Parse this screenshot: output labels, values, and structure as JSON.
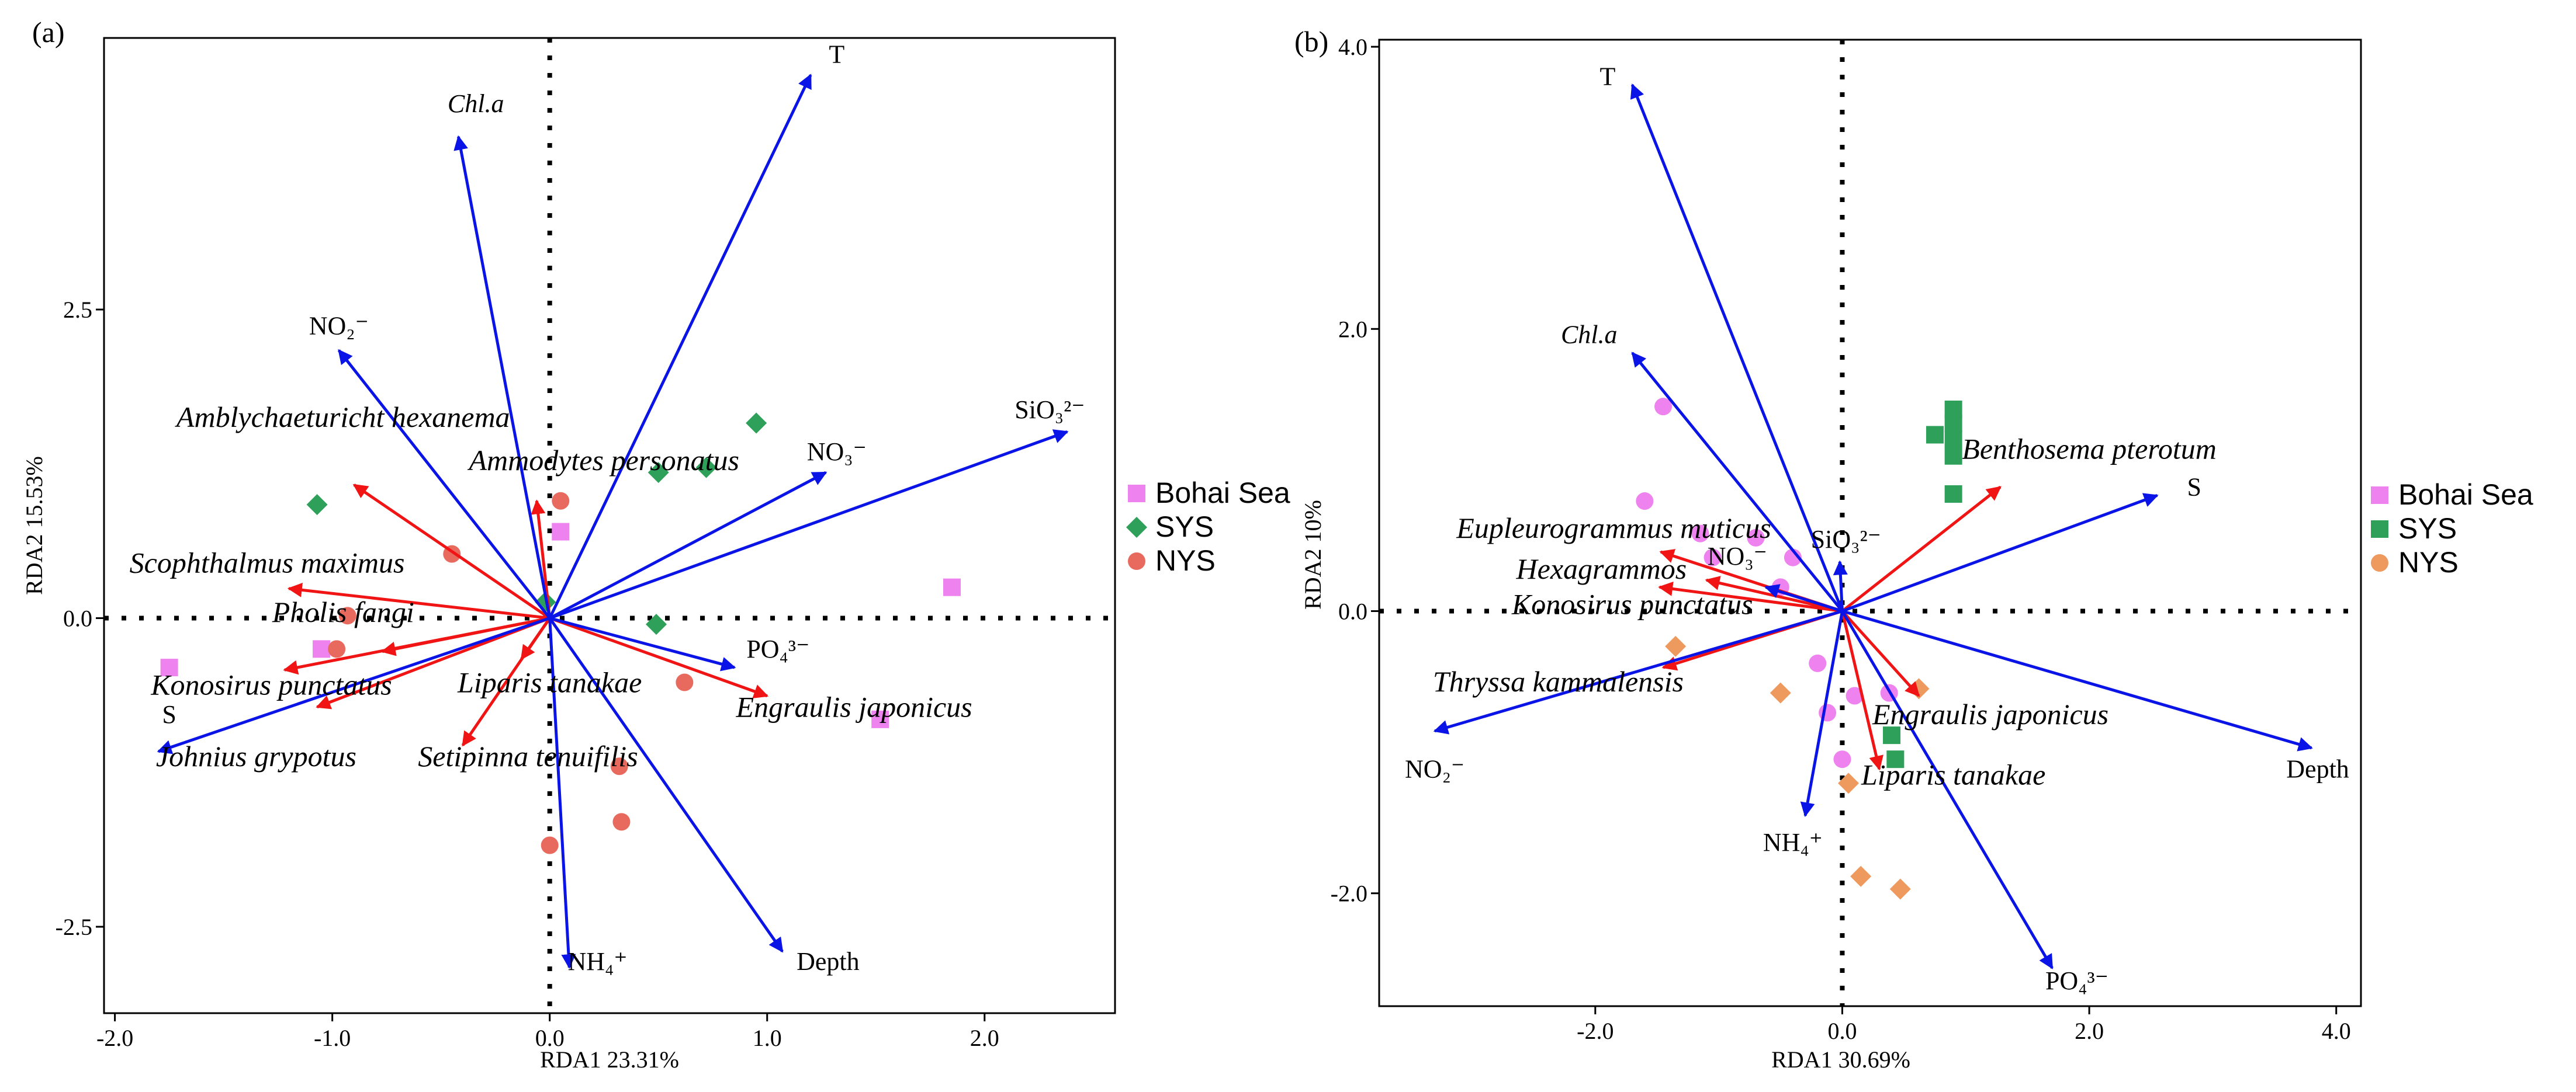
{
  "chart_data": [
    {
      "panel": "(a)",
      "type": "scatter",
      "xlabel": "RDA1 23.31%",
      "ylabel": "RDA2 15.53%",
      "xlim": [
        -2.05,
        2.6
      ],
      "ylim": [
        -3.2,
        4.7
      ],
      "xticks": [
        -2.0,
        -1.0,
        0.0,
        1.0,
        2.0
      ],
      "xtick_labels": [
        "-2.0",
        "-1.0",
        "0.0",
        "1.0",
        "2.0"
      ],
      "yticks": [
        -2.5,
        0.0,
        2.5
      ],
      "ytick_labels": [
        "-2.5",
        "0.0",
        "2.5"
      ],
      "env_vectors": [
        {
          "name": "T",
          "label": "T",
          "x": 1.2,
          "y": 4.4,
          "lx": 1.32,
          "ly": 4.5
        },
        {
          "name": "Chl.a",
          "label": "Chl.a",
          "x": -0.42,
          "y": 3.9,
          "lx": -0.34,
          "ly": 4.1,
          "italic": true
        },
        {
          "name": "NO2",
          "label": "NO₂⁻",
          "x": -0.97,
          "y": 2.17,
          "lx": -0.97,
          "ly": 2.3
        },
        {
          "name": "SiO3",
          "label": "SiO₃²⁻",
          "x": 2.38,
          "y": 1.51,
          "lx": 2.3,
          "ly": 1.62
        },
        {
          "name": "NO3",
          "label": "NO₃⁻",
          "x": 1.27,
          "y": 1.18,
          "lx": 1.32,
          "ly": 1.28
        },
        {
          "name": "PO4",
          "label": "PO₄³⁻",
          "x": 0.85,
          "y": -0.4,
          "lx": 1.05,
          "ly": -0.32
        },
        {
          "name": "S",
          "label": "S",
          "x": -1.8,
          "y": -1.08,
          "lx": -1.75,
          "ly": -0.85
        },
        {
          "name": "NH4",
          "label": "NH₄⁺",
          "x": 0.09,
          "y": -2.83,
          "lx": 0.22,
          "ly": -2.85
        },
        {
          "name": "Depth",
          "label": "Depth",
          "x": 1.07,
          "y": -2.7,
          "lx": 1.28,
          "ly": -2.85
        }
      ],
      "species_vectors": [
        {
          "name": "Amblychaeturicht hexanema",
          "x": -0.9,
          "y": 1.08,
          "lx": -0.95,
          "ly": 1.55
        },
        {
          "name": "Ammodytes personatus",
          "x": -0.06,
          "y": 0.95,
          "lx": 0.25,
          "ly": 1.2
        },
        {
          "name": "Scophthalmus maximus",
          "x": -1.2,
          "y": 0.24,
          "lx": -1.3,
          "ly": 0.37
        },
        {
          "name": "Pholis fangi",
          "x": -0.77,
          "y": -0.27,
          "lx": -0.95,
          "ly": -0.03
        },
        {
          "name": "Konosirus punctatus",
          "x": -1.22,
          "y": -0.42,
          "lx": -1.28,
          "ly": -0.62
        },
        {
          "name": "Johnius grypotus",
          "x": -1.07,
          "y": -0.72,
          "lx": -1.35,
          "ly": -1.2
        },
        {
          "name": "Liparis tanakae",
          "x": -0.13,
          "y": -0.33,
          "lx": 0.0,
          "ly": -0.6
        },
        {
          "name": "Setipinna tenuifilis",
          "x": -0.4,
          "y": -1.03,
          "lx": -0.1,
          "ly": -1.2
        },
        {
          "name": "Engraulis japonicus",
          "x": 1.0,
          "y": -0.63,
          "lx": 1.4,
          "ly": -0.8
        }
      ],
      "sites": [
        {
          "group": "Bohai Sea",
          "x": 0.05,
          "y": 0.7
        },
        {
          "group": "Bohai Sea",
          "x": 1.85,
          "y": 0.25
        },
        {
          "group": "Bohai Sea",
          "x": -1.75,
          "y": -0.4
        },
        {
          "group": "Bohai Sea",
          "x": -1.05,
          "y": -0.25
        },
        {
          "group": "Bohai Sea",
          "x": 1.52,
          "y": -0.82
        },
        {
          "group": "SYS",
          "x": 0.95,
          "y": 1.58
        },
        {
          "group": "SYS",
          "x": 0.72,
          "y": 1.22
        },
        {
          "group": "SYS",
          "x": 0.5,
          "y": 1.18
        },
        {
          "group": "SYS",
          "x": -1.07,
          "y": 0.92
        },
        {
          "group": "SYS",
          "x": -0.02,
          "y": 0.13
        },
        {
          "group": "SYS",
          "x": 0.49,
          "y": -0.05
        },
        {
          "group": "NYS",
          "x": 0.05,
          "y": 0.95
        },
        {
          "group": "NYS",
          "x": -0.45,
          "y": 0.52
        },
        {
          "group": "NYS",
          "x": -0.93,
          "y": 0.02
        },
        {
          "group": "NYS",
          "x": -0.98,
          "y": -0.25
        },
        {
          "group": "NYS",
          "x": 0.62,
          "y": -0.52
        },
        {
          "group": "NYS",
          "x": 0.32,
          "y": -1.2
        },
        {
          "group": "NYS",
          "x": 0.33,
          "y": -1.65
        },
        {
          "group": "NYS",
          "x": 0.0,
          "y": -1.84
        }
      ],
      "legend": [
        {
          "group": "Bohai Sea",
          "label": "Bohai Sea"
        },
        {
          "group": "SYS",
          "label": "SYS"
        },
        {
          "group": "NYS",
          "label": "NYS"
        }
      ]
    },
    {
      "panel": "(b)",
      "type": "scatter",
      "xlabel": "RDA1 30.69%",
      "ylabel": "RDA2 10%",
      "xlim": [
        -3.75,
        4.2
      ],
      "ylim": [
        -2.8,
        4.05
      ],
      "xticks": [
        -2.0,
        0.0,
        2.0,
        4.0
      ],
      "xtick_labels": [
        "-2.0",
        "0.0",
        "2.0",
        "4.0"
      ],
      "yticks": [
        -2.0,
        0.0,
        2.0,
        4.0
      ],
      "ytick_labels": [
        "-2.0",
        "0.0",
        "2.0",
        "4.0"
      ],
      "env_vectors": [
        {
          "name": "T",
          "label": "T",
          "x": -1.7,
          "y": 3.73,
          "lx": -1.9,
          "ly": 3.73
        },
        {
          "name": "Chl.a",
          "label": "Chl.a",
          "x": -1.7,
          "y": 1.83,
          "lx": -2.05,
          "ly": 1.9,
          "italic": true
        },
        {
          "name": "SiO3",
          "label": "SiO₃²⁻",
          "x": -0.02,
          "y": 0.35,
          "lx": 0.03,
          "ly": 0.45
        },
        {
          "name": "NO3",
          "label": "NO₃⁻",
          "x": -0.62,
          "y": 0.17,
          "lx": -0.85,
          "ly": 0.33
        },
        {
          "name": "S",
          "label": "S",
          "x": 2.55,
          "y": 0.82,
          "lx": 2.85,
          "ly": 0.82
        },
        {
          "name": "NO2",
          "label": "NO₂⁻",
          "x": -3.3,
          "y": -0.85,
          "lx": -3.3,
          "ly": -1.18
        },
        {
          "name": "NH4",
          "label": "NH₄⁺",
          "x": -0.3,
          "y": -1.45,
          "lx": -0.4,
          "ly": -1.7
        },
        {
          "name": "Depth",
          "label": "Depth",
          "x": 3.8,
          "y": -0.97,
          "lx": 3.85,
          "ly": -1.18
        },
        {
          "name": "PO4",
          "label": "PO₄³⁻",
          "x": 1.7,
          "y": -2.53,
          "lx": 1.9,
          "ly": -2.68
        }
      ],
      "species_vectors": [
        {
          "name": "Benthosema pterotum",
          "x": 1.28,
          "y": 0.88,
          "lx": 2.0,
          "ly": 1.08
        },
        {
          "name": "Eupleurogrammus muticus",
          "x": -1.47,
          "y": 0.42,
          "lx": -1.85,
          "ly": 0.52
        },
        {
          "name": "Hexagrammos",
          "x": -1.1,
          "y": 0.22,
          "lx": -1.95,
          "ly": 0.23
        },
        {
          "name": "Konosirus punctatus",
          "x": -1.48,
          "y": 0.17,
          "lx": -1.7,
          "ly": -0.02
        },
        {
          "name": "Thryssa kammalensis",
          "x": -1.45,
          "y": -0.4,
          "lx": -2.3,
          "ly": -0.57
        },
        {
          "name": "Engraulis japonicus",
          "x": 0.62,
          "y": -0.6,
          "lx": 1.2,
          "ly": -0.8
        },
        {
          "name": "Liparis tanakae",
          "x": 0.3,
          "y": -1.12,
          "lx": 0.9,
          "ly": -1.23
        }
      ],
      "sites": [
        {
          "group": "Bohai Sea",
          "x": -1.45,
          "y": 1.45
        },
        {
          "group": "Bohai Sea",
          "x": -1.6,
          "y": 0.78
        },
        {
          "group": "Bohai Sea",
          "x": -1.15,
          "y": 0.55
        },
        {
          "group": "Bohai Sea",
          "x": -0.7,
          "y": 0.52
        },
        {
          "group": "Bohai Sea",
          "x": -1.05,
          "y": 0.38
        },
        {
          "group": "Bohai Sea",
          "x": -0.4,
          "y": 0.38
        },
        {
          "group": "Bohai Sea",
          "x": -0.5,
          "y": 0.17
        },
        {
          "group": "Bohai Sea",
          "x": -0.2,
          "y": -0.37
        },
        {
          "group": "Bohai Sea",
          "x": -0.12,
          "y": -0.72
        },
        {
          "group": "Bohai Sea",
          "x": 0.1,
          "y": -0.6
        },
        {
          "group": "Bohai Sea",
          "x": 0.38,
          "y": -0.58
        },
        {
          "group": "Bohai Sea",
          "x": 0.0,
          "y": -1.05
        },
        {
          "group": "SYS",
          "x": 0.9,
          "y": 1.43
        },
        {
          "group": "SYS",
          "x": 0.9,
          "y": 1.33
        },
        {
          "group": "SYS",
          "x": 0.9,
          "y": 1.22
        },
        {
          "group": "SYS",
          "x": 0.75,
          "y": 1.25
        },
        {
          "group": "SYS",
          "x": 0.9,
          "y": 1.1
        },
        {
          "group": "SYS",
          "x": 0.9,
          "y": 0.83
        },
        {
          "group": "SYS",
          "x": 0.4,
          "y": -0.88
        },
        {
          "group": "SYS",
          "x": 0.43,
          "y": -1.05
        },
        {
          "group": "NYS",
          "x": -1.35,
          "y": -0.25
        },
        {
          "group": "NYS",
          "x": -0.5,
          "y": -0.58
        },
        {
          "group": "NYS",
          "x": 0.62,
          "y": -0.55
        },
        {
          "group": "NYS",
          "x": 0.05,
          "y": -1.22
        },
        {
          "group": "NYS",
          "x": 0.15,
          "y": -1.88
        },
        {
          "group": "NYS",
          "x": 0.47,
          "y": -1.97
        }
      ],
      "legend": [
        {
          "group": "Bohai Sea",
          "label": "Bohai Sea"
        },
        {
          "group": "SYS",
          "label": "SYS"
        },
        {
          "group": "NYS",
          "label": "NYS"
        }
      ]
    }
  ],
  "colors": {
    "env_arrow": "#0a14e6",
    "species_arrow": "#f01414",
    "bohai": "#ee82ee",
    "sys": "#2ea05a",
    "nys_a": "#e86a5e",
    "nys_b": "#ee9a5e",
    "axis": "#000000"
  }
}
